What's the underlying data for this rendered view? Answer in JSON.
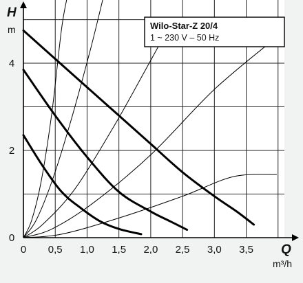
{
  "chart_data": {
    "type": "line",
    "title": "Wilo-Star-Z 20/4",
    "subtitle": "1 ~ 230 V – 50 Hz",
    "y_symbol": "H",
    "y_unit": "m",
    "x_symbol": "Q",
    "x_unit": "m³/h",
    "xlim": [
      0,
      4.1
    ],
    "ylim": [
      0,
      5.45
    ],
    "grid": true,
    "x_ticks": [
      {
        "v": 0,
        "label": "0"
      },
      {
        "v": 0.5,
        "label": "0,5"
      },
      {
        "v": 1.0,
        "label": "1,0"
      },
      {
        "v": 1.5,
        "label": "1,5"
      },
      {
        "v": 2.0,
        "label": "2,0"
      },
      {
        "v": 2.5,
        "label": "2,5"
      },
      {
        "v": 3.0,
        "label": "3,0"
      },
      {
        "v": 3.5,
        "label": "3,5"
      }
    ],
    "y_ticks": [
      {
        "v": 0,
        "label": "0"
      },
      {
        "v": 2,
        "label": "2"
      },
      {
        "v": 4,
        "label": "4"
      }
    ],
    "series": [
      {
        "points": [
          [
            0,
            4.75
          ],
          [
            0.5,
            4.1
          ],
          [
            1.0,
            3.45
          ],
          [
            1.5,
            2.8
          ],
          [
            2.0,
            2.15
          ],
          [
            2.5,
            1.5
          ],
          [
            3.0,
            0.95
          ],
          [
            3.35,
            0.6
          ],
          [
            3.62,
            0.3
          ]
        ]
      },
      {
        "points": [
          [
            0,
            3.85
          ],
          [
            0.5,
            2.8
          ],
          [
            1.0,
            1.85
          ],
          [
            1.5,
            1.05
          ],
          [
            2.0,
            0.6
          ],
          [
            2.3,
            0.38
          ],
          [
            2.57,
            0.18
          ]
        ]
      },
      {
        "points": [
          [
            0,
            2.35
          ],
          [
            0.3,
            1.65
          ],
          [
            0.6,
            1.05
          ],
          [
            0.9,
            0.68
          ],
          [
            1.2,
            0.38
          ],
          [
            1.5,
            0.2
          ],
          [
            1.85,
            0.08
          ]
        ]
      }
    ],
    "system_curves": [
      {
        "points": [
          [
            0,
            0
          ],
          [
            0.13,
            0.4
          ],
          [
            0.28,
            1.3
          ],
          [
            0.45,
            2.9
          ],
          [
            0.6,
            4.8
          ],
          [
            0.7,
            5.6
          ]
        ]
      },
      {
        "points": [
          [
            0,
            0
          ],
          [
            0.2,
            0.4
          ],
          [
            0.45,
            1.3
          ],
          [
            0.75,
            2.7
          ],
          [
            1.05,
            4.3
          ],
          [
            1.27,
            5.6
          ]
        ]
      },
      {
        "points": [
          [
            0,
            0
          ],
          [
            0.3,
            0.3
          ],
          [
            0.8,
            1.1
          ],
          [
            1.4,
            2.5
          ],
          [
            1.9,
            3.8
          ],
          [
            2.35,
            5.0
          ]
        ]
      },
      {
        "points": [
          [
            0,
            0
          ],
          [
            0.45,
            0.2
          ],
          [
            1.1,
            0.8
          ],
          [
            2.0,
            1.9
          ],
          [
            3.0,
            3.4
          ],
          [
            3.98,
            4.6
          ]
        ]
      },
      {
        "points": [
          [
            0,
            0
          ],
          [
            0.6,
            0.08
          ],
          [
            1.5,
            0.45
          ],
          [
            2.5,
            0.95
          ],
          [
            3.3,
            1.4
          ],
          [
            3.98,
            1.45
          ]
        ]
      }
    ]
  }
}
